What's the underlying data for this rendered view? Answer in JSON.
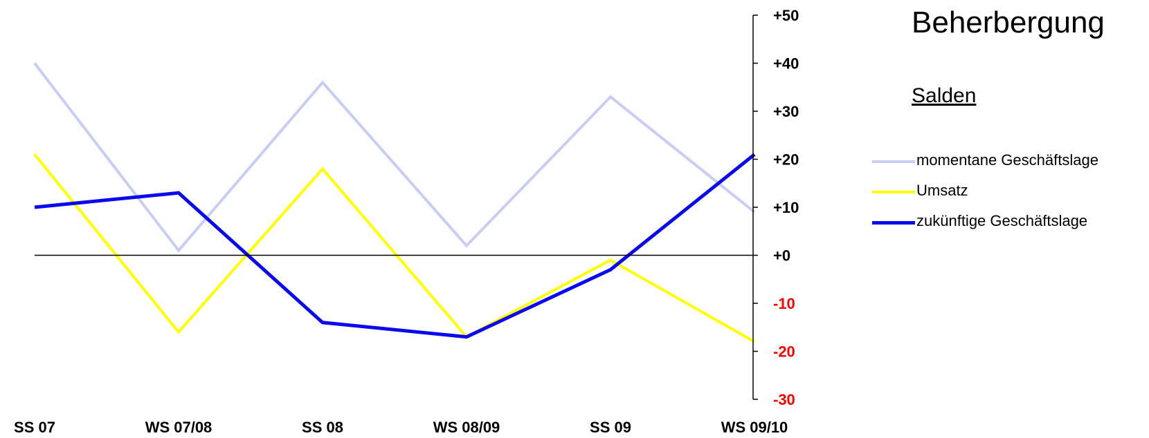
{
  "title": "Beherbergung",
  "subtitle": "Salden",
  "chart_data": {
    "type": "line",
    "categories": [
      "SS 07",
      "WS 07/08",
      "SS 08",
      "WS 08/09",
      "SS 09",
      "WS 09/10"
    ],
    "ylim": [
      -30,
      50
    ],
    "yticks": [
      50,
      40,
      30,
      20,
      10,
      0,
      -10,
      -20,
      -30
    ],
    "ytick_labels": [
      "+50",
      "+40",
      "+30",
      "+20",
      "+10",
      "+0",
      "-10",
      "-20",
      "-30"
    ],
    "y_axis_position": "right",
    "negative_tick_color": "#ff0000",
    "positive_tick_color": "#000000",
    "zero_line": true,
    "grid": false,
    "legend_position": "right",
    "series": [
      {
        "name": "momentane Geschäftslage",
        "color": "#c8cdf5",
        "values": [
          40,
          1,
          36,
          2,
          33,
          9
        ]
      },
      {
        "name": "Umsatz",
        "color": "#ffff00",
        "values": [
          21,
          -16,
          18,
          -17,
          -1,
          -18
        ]
      },
      {
        "name": "zukünftige Geschäftslage",
        "color": "#0a0aee",
        "values": [
          10,
          13,
          -14,
          -17,
          -3,
          21
        ]
      }
    ]
  }
}
